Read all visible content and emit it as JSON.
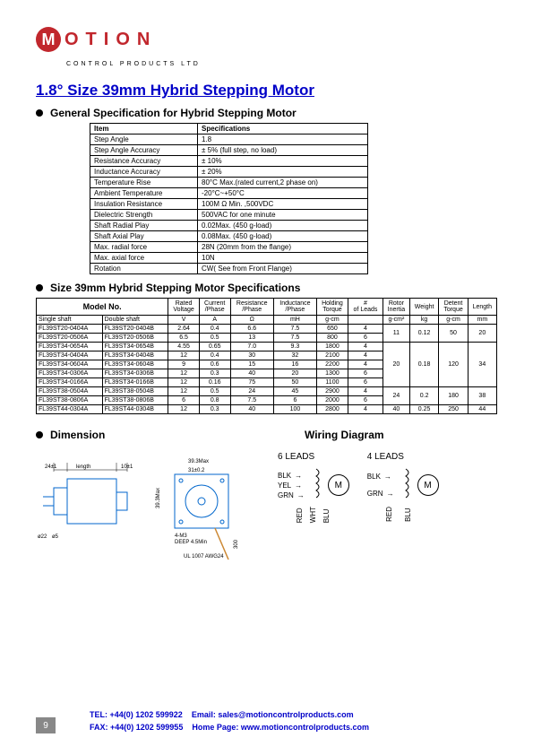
{
  "brand": {
    "logo_initial": "M",
    "logo_rest": "OTION",
    "subline": "CONTROL PRODUCTS LTD"
  },
  "title": "1.8°  Size 39mm Hybrid Stepping Motor",
  "sections": {
    "general": "General Specification for Hybrid Stepping Motor",
    "specs": "Size 39mm Hybrid Stepping Motor Specifications",
    "dimension": "Dimension",
    "wiring": "Wiring Diagram"
  },
  "generalTable": {
    "headers": [
      "Item",
      "Specifications"
    ],
    "rows": [
      [
        "Step Angle",
        "1.8"
      ],
      [
        "Step Angle Accuracy",
        "± 5% (full step, no load)"
      ],
      [
        "Resistance Accuracy",
        "± 10%"
      ],
      [
        "Inductance Accuracy",
        "± 20%"
      ],
      [
        "Temperature Rise",
        "80°C Max.(rated current,2 phase on)"
      ],
      [
        "Ambient Temperature",
        "-20°C~+50°C"
      ],
      [
        "Insulation Resistance",
        "100M Ω Min. ,500VDC"
      ],
      [
        "Dielectric Strength",
        "500VAC for one minute"
      ],
      [
        "Shaft Radial Play",
        "0.02Max. (450 g-load)"
      ],
      [
        "Shaft Axial Play",
        "0.08Max. (450 g-load)"
      ],
      [
        "Max. radial force",
        "28N   (20mm from the flange)"
      ],
      [
        "Max. axial force",
        "10N"
      ],
      [
        "Rotation",
        "CW( See from Front Flange)"
      ]
    ]
  },
  "modelTable": {
    "header1": {
      "model": "Model No.",
      "cols": [
        "Rated Voltage",
        "Current /Phase",
        "Resistance /Phase",
        "Inductance /Phase",
        "Holding Torque",
        "# of Leads",
        "Rotor Inertia",
        "Weight",
        "Detent Torque",
        "Length"
      ]
    },
    "header2": [
      "Single shaft",
      "Double shaft",
      "V",
      "A",
      "Ω",
      "mH",
      "g-cm",
      "",
      "g-cm²",
      "kg",
      "g-cm",
      "mm"
    ],
    "rows": [
      [
        "FL39ST20-0404A",
        "FL39ST20-0404B",
        "2.64",
        "0.4",
        "6.6",
        "7.5",
        "650",
        "4",
        "11",
        "0.12",
        "50",
        "20"
      ],
      [
        "FL39ST20-0506A",
        "FL39ST20-0506B",
        "6.5",
        "0.5",
        "13",
        "7.5",
        "800",
        "6",
        "",
        "",
        "",
        ""
      ],
      [
        "FL39ST34-0654A",
        "FL39ST34-0654B",
        "4.55",
        "0.65",
        "7.0",
        "9.3",
        "1800",
        "4",
        "20",
        "0.18",
        "120",
        "34"
      ],
      [
        "FL39ST34-0404A",
        "FL39ST34-0404B",
        "12",
        "0.4",
        "30",
        "32",
        "2100",
        "4",
        "",
        "",
        "",
        ""
      ],
      [
        "FL39ST34-0604A",
        "FL39ST34-0604B",
        "9",
        "0.6",
        "15",
        "16",
        "2200",
        "4",
        "",
        "",
        "",
        ""
      ],
      [
        "FL39ST34-0306A",
        "FL39ST34-0306B",
        "12",
        "0.3",
        "40",
        "20",
        "1300",
        "6",
        "",
        "",
        "",
        ""
      ],
      [
        "FL39ST34-0166A",
        "FL39ST34-0166B",
        "12",
        "0.16",
        "75",
        "50",
        "1100",
        "6",
        "",
        "",
        "",
        ""
      ],
      [
        "FL39ST38-0504A",
        "FL39ST38-0504B",
        "12",
        "0.5",
        "24",
        "45",
        "2900",
        "4",
        "24",
        "0.2",
        "180",
        "38"
      ],
      [
        "FL39ST38-0806A",
        "FL39ST38-0806B",
        "6",
        "0.8",
        "7.5",
        "6",
        "2000",
        "6",
        "",
        "",
        "",
        ""
      ],
      [
        "FL39ST44-0304A",
        "FL39ST44-0304B",
        "12",
        "0.3",
        "40",
        "100",
        "2800",
        "4",
        "40",
        "0.25",
        "250",
        "44"
      ]
    ],
    "merges": {
      "r0": {
        "inertia": "11",
        "weight": "0.12",
        "detent": "50",
        "length": "20",
        "span": 2
      },
      "r2": {
        "inertia": "20",
        "weight": "0.18",
        "detent": "120",
        "length": "34",
        "span": 5
      },
      "r7": {
        "inertia": "24",
        "weight": "0.2",
        "detent": "180",
        "length": "38",
        "span": 2
      },
      "r9": {
        "inertia": "40",
        "weight": "0.25",
        "detent": "250",
        "length": "44",
        "span": 1
      }
    }
  },
  "dimension": {
    "labels": {
      "lenTop": "length",
      "offset1": "24±1",
      "offset2": "10±1",
      "sq": "39.3Max",
      "slot": "31±0.2",
      "sqside": "39.3Max",
      "holes": "4-M3",
      "deep": "DEEP 4.5Min",
      "cable": "UL 1007 AWG24",
      "cablelen": "300",
      "dia1": "ø22",
      "dia2": "ø5",
      "colors": {
        "frame": "#0066cc",
        "text": "#000000",
        "cable": "#cc8833"
      }
    }
  },
  "wiring": {
    "sixLeads": {
      "title": "6  LEADS",
      "left": [
        "BLK",
        "YEL",
        "GRN"
      ],
      "bottom": [
        "RED",
        "WHT",
        "BLU"
      ]
    },
    "fourLeads": {
      "title": "4  LEADS",
      "left": [
        "BLK",
        "GRN"
      ],
      "bottom": [
        "RED",
        "BLU"
      ]
    },
    "motorLabel": "M"
  },
  "footer": {
    "line1a": "TEL:  +44(0) 1202 599922",
    "line1b": "Email:  sales@motioncontrolproducts.com",
    "line2a": "FAX:  +44(0) 1202 599955",
    "line2b": "Home Page:  www.motioncontrolproducts.com",
    "page": "9"
  },
  "colors": {
    "brand": "#c1272d",
    "heading": "#0000c8",
    "border": "#000000"
  }
}
